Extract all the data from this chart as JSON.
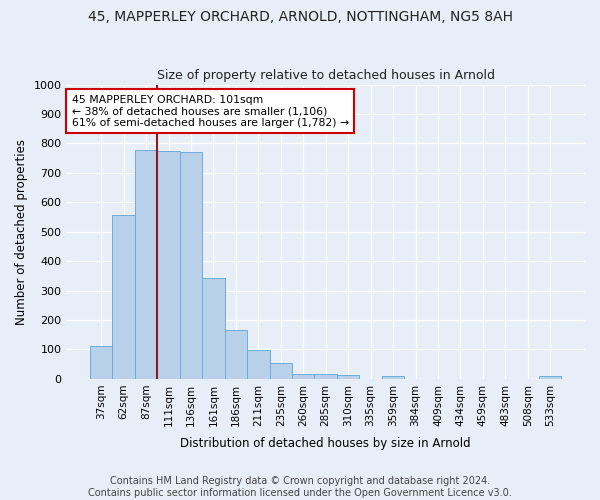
{
  "title1": "45, MAPPERLEY ORCHARD, ARNOLD, NOTTINGHAM, NG5 8AH",
  "title2": "Size of property relative to detached houses in Arnold",
  "xlabel": "Distribution of detached houses by size in Arnold",
  "ylabel": "Number of detached properties",
  "bar_labels": [
    "37sqm",
    "62sqm",
    "87sqm",
    "111sqm",
    "136sqm",
    "161sqm",
    "186sqm",
    "211sqm",
    "235sqm",
    "260sqm",
    "285sqm",
    "310sqm",
    "335sqm",
    "359sqm",
    "384sqm",
    "409sqm",
    "434sqm",
    "459sqm",
    "483sqm",
    "508sqm",
    "533sqm"
  ],
  "bar_counts": [
    113,
    557,
    779,
    773,
    770,
    343,
    165,
    98,
    53,
    18,
    15,
    13,
    0,
    10,
    0,
    0,
    0,
    0,
    0,
    0,
    10
  ],
  "bar_color": "#b8d0ea",
  "bar_edge_color": "#6aaed6",
  "vline_color": "#8b1a1a",
  "annotation_text": "45 MAPPERLEY ORCHARD: 101sqm\n← 38% of detached houses are smaller (1,106)\n61% of semi-detached houses are larger (1,782) →",
  "annotation_box_color": "#ffffff",
  "annotation_box_edge": "#cc0000",
  "ylim": [
    0,
    1000
  ],
  "yticks": [
    0,
    100,
    200,
    300,
    400,
    500,
    600,
    700,
    800,
    900,
    1000
  ],
  "footer1": "Contains HM Land Registry data © Crown copyright and database right 2024.",
  "footer2": "Contains public sector information licensed under the Open Government Licence v3.0.",
  "bg_color": "#e8eef8",
  "plot_bg_color": "#e8eef8",
  "grid_color": "#ffffff",
  "title1_fontsize": 10,
  "title2_fontsize": 9,
  "footer_fontsize": 7
}
